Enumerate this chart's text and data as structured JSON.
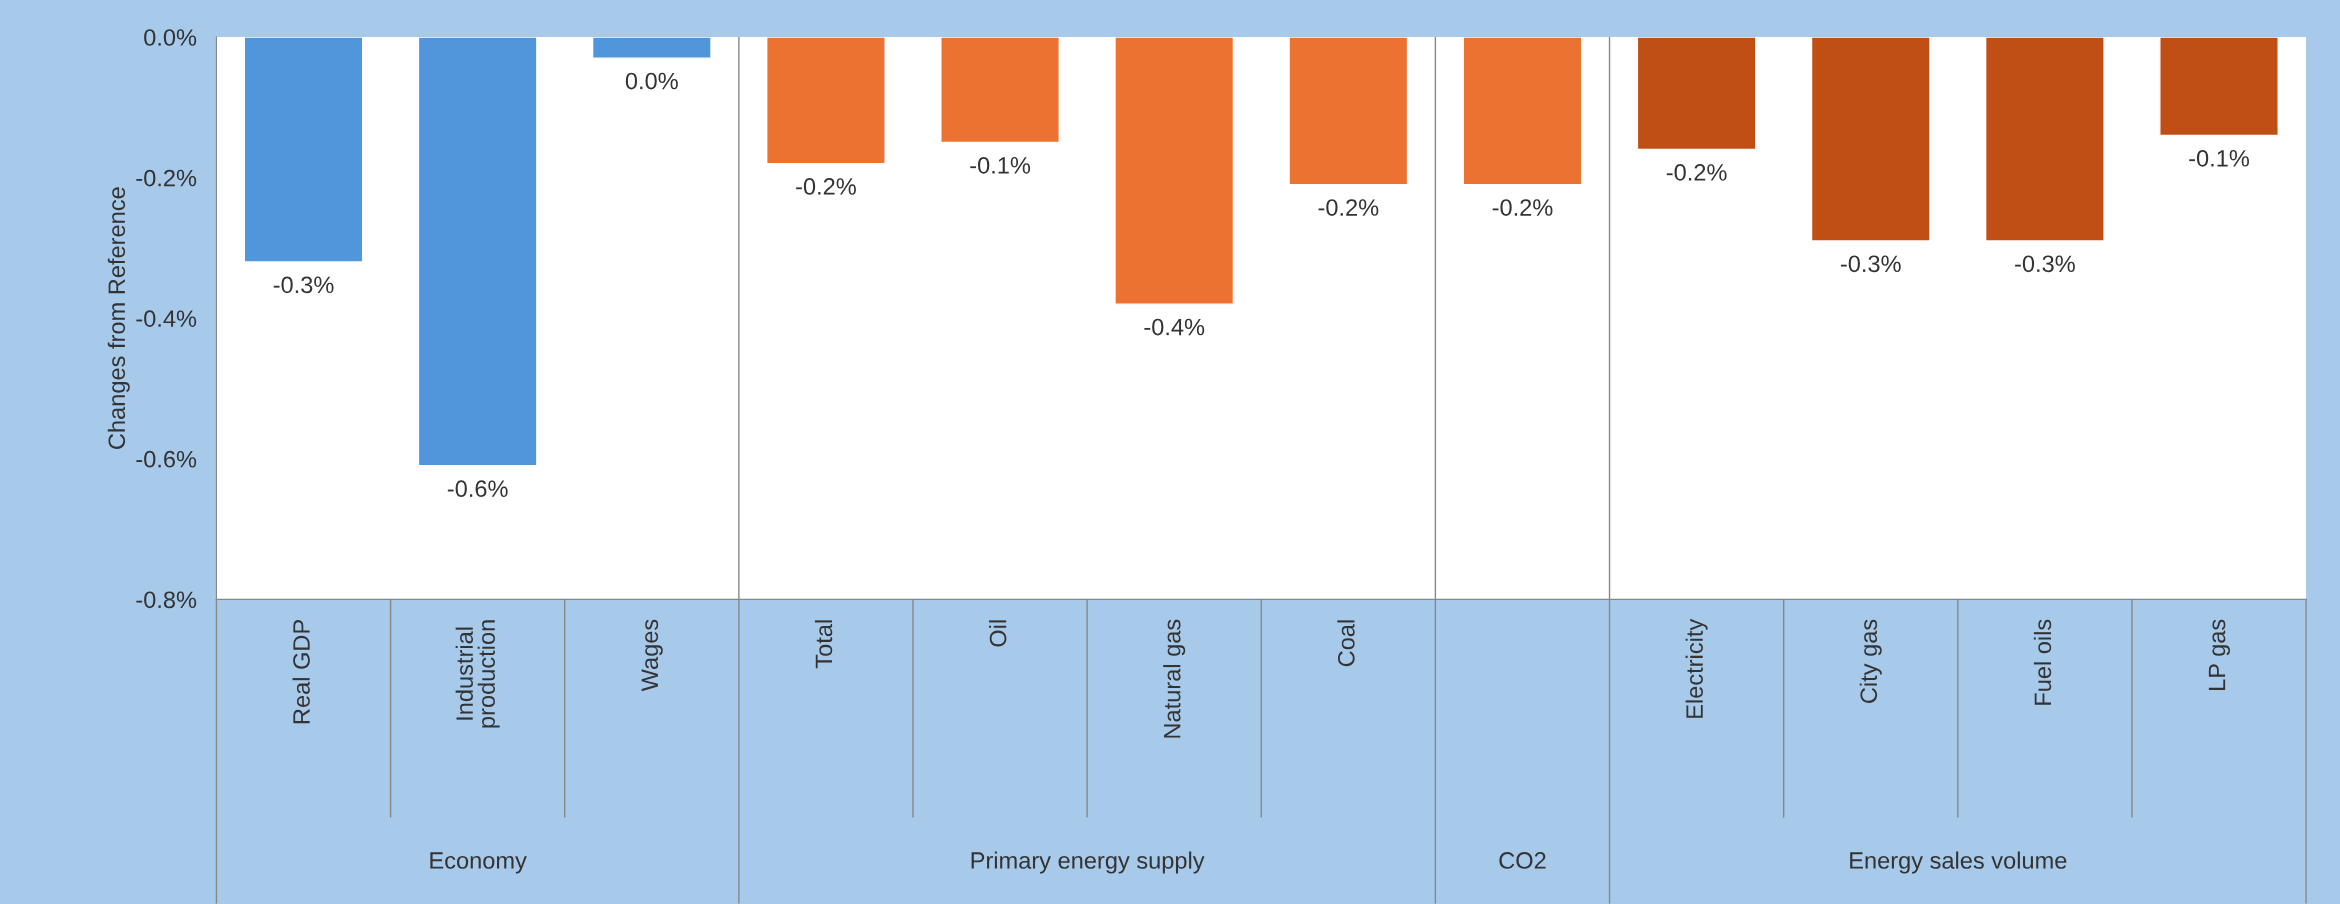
{
  "chart_data": {
    "type": "bar",
    "ylabel": "Changes from Reference",
    "categories": [
      "Real GDP",
      "Industrial\nproduction",
      "Wages",
      "Total",
      "Oil",
      "Natural gas",
      "Coal",
      null,
      "Electricity",
      "City gas",
      "Fuel oils",
      "LP gas"
    ],
    "values": [
      -0.32,
      -0.61,
      -0.03,
      -0.18,
      -0.15,
      -0.38,
      -0.21,
      -0.21,
      -0.16,
      -0.29,
      -0.29,
      -0.14
    ],
    "colors": [
      "#4f97da",
      "#4f97da",
      "#4f97da",
      "#ec7232",
      "#ec7232",
      "#ec7232",
      "#ec7232",
      "#ec7232",
      "#c04f15",
      "#c04f15",
      "#c04f15",
      "#c04f15"
    ],
    "value_labels": [
      "-0.3%",
      "-0.6%",
      "0.0%",
      "-0.2%",
      "-0.1%",
      "-0.4%",
      "-0.2%",
      "-0.2%",
      "-0.2%",
      "-0.3%",
      "-0.3%",
      "-0.1%"
    ],
    "ylim": [
      -0.8,
      0
    ],
    "yticks": [
      {
        "value": -0.8,
        "label": "-0.8%"
      },
      {
        "value": -0.6,
        "label": "-0.6%"
      },
      {
        "value": -0.4,
        "label": "-0.4%"
      },
      {
        "value": -0.2,
        "label": "-0.2%"
      },
      {
        "value": 0,
        "label": "0.0%"
      }
    ],
    "annotations": [
      "Economy",
      "Primary energy supply",
      "CO2",
      "Energy sales volume"
    ],
    "grid": false,
    "legend": false
  }
}
